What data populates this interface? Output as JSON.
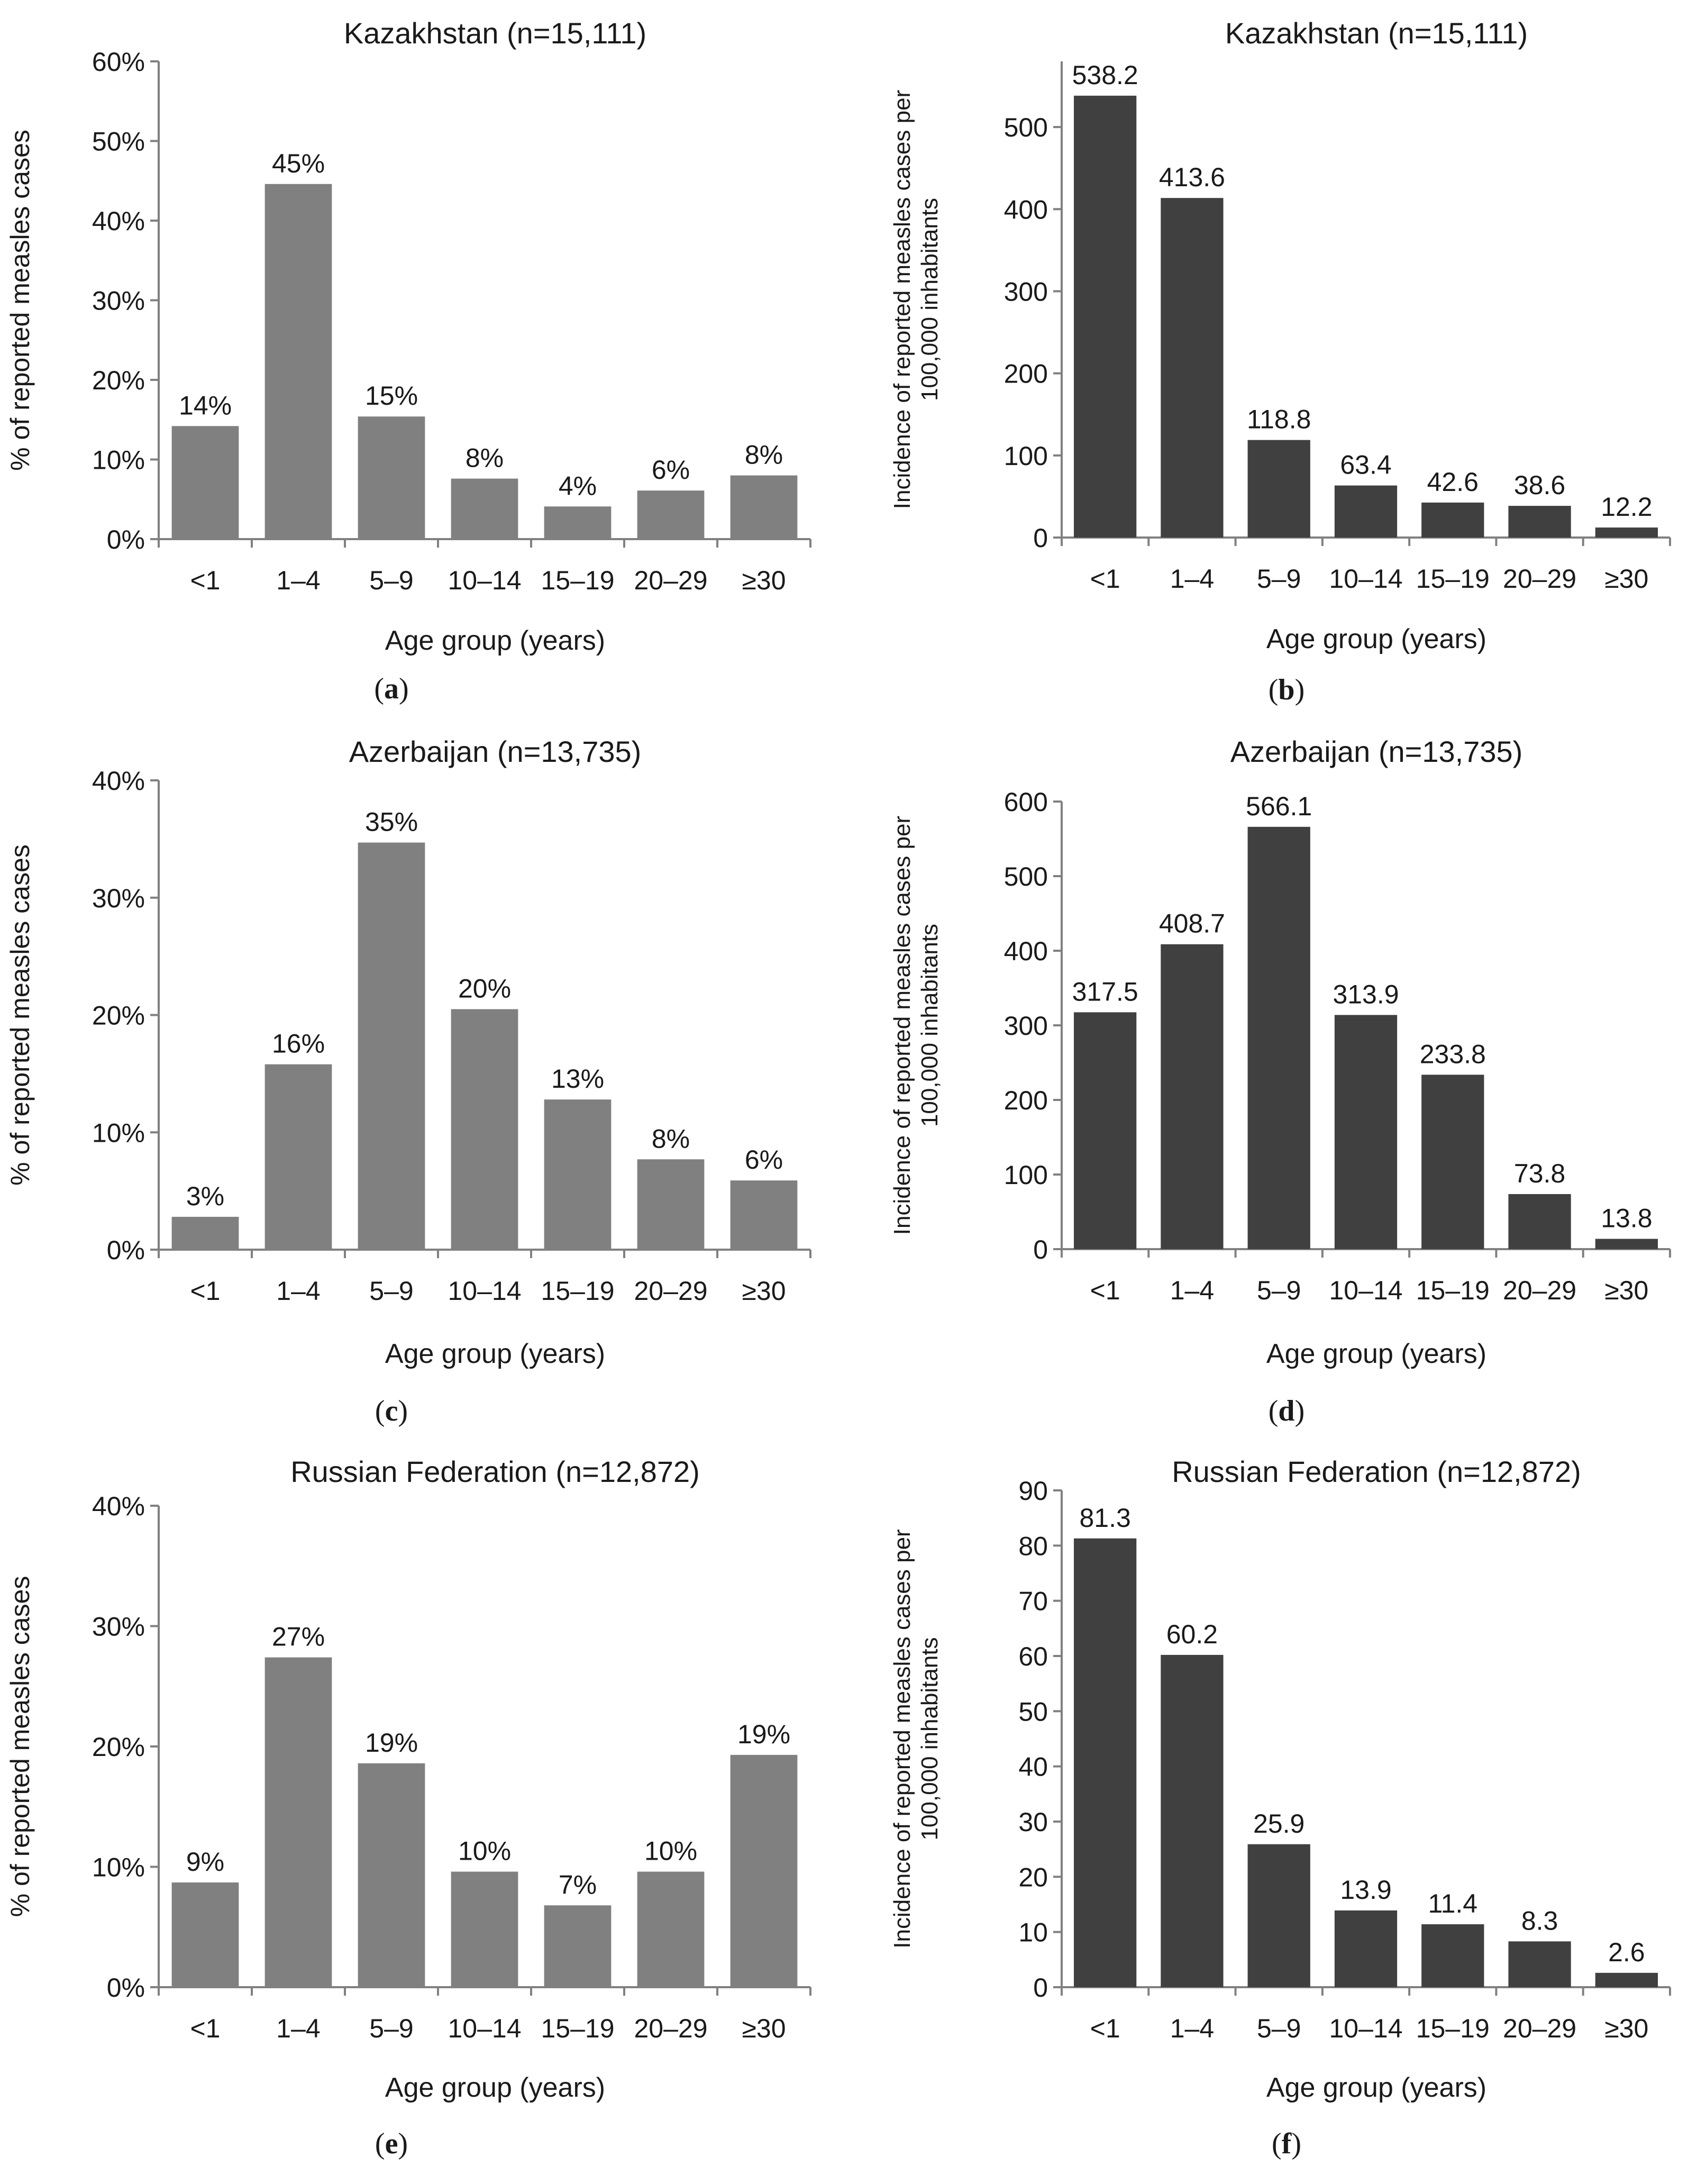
{
  "chart_data": [
    {
      "panel": "a",
      "type": "bar",
      "title": "Kazakhstan (n=15,111)",
      "xlabel": "Age group (years)",
      "ylabel": "% of reported measles cases",
      "categories": [
        "<1",
        "1–4",
        "5–9",
        "10–14",
        "15–19",
        "20–29",
        "≥30"
      ],
      "values": [
        14.2,
        44.6,
        15.4,
        7.6,
        4.1,
        6.1,
        8.0
      ],
      "data_labels": [
        "14%",
        "45%",
        "15%",
        "8%",
        "4%",
        "6%",
        "8%"
      ],
      "ylim": [
        0,
        60
      ],
      "yticks": [
        0,
        10,
        20,
        30,
        40,
        50,
        60
      ],
      "ytick_labels": [
        "0%",
        "10%",
        "20%",
        "30%",
        "40%",
        "50%",
        "60%"
      ],
      "color": "#808080"
    },
    {
      "panel": "b",
      "type": "bar",
      "title": "Kazakhstan (n=15,111)",
      "xlabel": "Age group (years)",
      "ylabel": "Incidence of reported measles cases per 100,000 inhabitants",
      "categories": [
        "<1",
        "1–4",
        "5–9",
        "10–14",
        "15–19",
        "20–29",
        "≥30"
      ],
      "values": [
        538.2,
        413.6,
        118.8,
        63.4,
        42.6,
        38.6,
        12.2
      ],
      "data_labels": [
        "538.2",
        "413.6",
        "118.8",
        "63.4",
        "42.6",
        "38.6",
        "12.2"
      ],
      "ylim": [
        0,
        580
      ],
      "yticks": [
        0,
        100,
        200,
        300,
        400,
        500
      ],
      "ytick_labels": [
        "0",
        "100",
        "200",
        "300",
        "400",
        "500"
      ],
      "color": "#404040"
    },
    {
      "panel": "c",
      "type": "bar",
      "title": "Azerbaijan (n=13,735)",
      "xlabel": "Age group (years)",
      "ylabel": "% of reported measles cases",
      "categories": [
        "<1",
        "1–4",
        "5–9",
        "10–14",
        "15–19",
        "20–29",
        "≥30"
      ],
      "values": [
        2.8,
        15.8,
        34.7,
        20.5,
        12.8,
        7.7,
        5.9
      ],
      "data_labels": [
        "3%",
        "16%",
        "35%",
        "20%",
        "13%",
        "8%",
        "6%"
      ],
      "ylim": [
        0,
        40
      ],
      "yticks": [
        0,
        10,
        20,
        30,
        40
      ],
      "ytick_labels": [
        "0%",
        "10%",
        "20%",
        "30%",
        "40%"
      ],
      "color": "#808080"
    },
    {
      "panel": "d",
      "type": "bar",
      "title": "Azerbaijan (n=13,735)",
      "xlabel": "Age group (years)",
      "ylabel": "Incidence of reported measles cases per 100,000 inhabitants",
      "categories": [
        "<1",
        "1–4",
        "5–9",
        "10–14",
        "15–19",
        "20–29",
        "≥30"
      ],
      "values": [
        317.5,
        408.7,
        566.1,
        313.9,
        233.8,
        73.8,
        13.8
      ],
      "data_labels": [
        "317.5",
        "408.7",
        "566.1",
        "313.9",
        "233.8",
        "73.8",
        "13.8"
      ],
      "ylim": [
        0,
        600
      ],
      "yticks": [
        0,
        100,
        200,
        300,
        400,
        500,
        600
      ],
      "ytick_labels": [
        "0",
        "100",
        "200",
        "300",
        "400",
        "500",
        "600"
      ],
      "color": "#404040"
    },
    {
      "panel": "e",
      "type": "bar",
      "title": "Russian Federation (n=12,872)",
      "xlabel": "Age group (years)",
      "ylabel": "% of reported measles cases",
      "categories": [
        "<1",
        "1–4",
        "5–9",
        "10–14",
        "15–19",
        "20–29",
        "≥30"
      ],
      "values": [
        8.7,
        27.4,
        18.6,
        9.6,
        6.8,
        9.6,
        19.3
      ],
      "data_labels": [
        "9%",
        "27%",
        "19%",
        "10%",
        "7%",
        "10%",
        "19%"
      ],
      "ylim": [
        0,
        40
      ],
      "yticks": [
        0,
        10,
        20,
        30,
        40
      ],
      "ytick_labels": [
        "0%",
        "10%",
        "20%",
        "30%",
        "40%"
      ],
      "color": "#808080"
    },
    {
      "panel": "f",
      "type": "bar",
      "title": "Russian Federation (n=12,872)",
      "xlabel": "Age group (years)",
      "ylabel": "Incidence of reported measles cases per 100,000 inhabitants",
      "categories": [
        "<1",
        "1–4",
        "5–9",
        "10–14",
        "15–19",
        "20–29",
        "≥30"
      ],
      "values": [
        81.3,
        60.2,
        25.9,
        13.9,
        11.4,
        8.3,
        2.6
      ],
      "data_labels": [
        "81.3",
        "60.2",
        "25.9",
        "13.9",
        "11.4",
        "8.3",
        "2.6"
      ],
      "ylim": [
        0,
        90
      ],
      "yticks": [
        0,
        10,
        20,
        30,
        40,
        50,
        60,
        70,
        80,
        90
      ],
      "ytick_labels": [
        "0",
        "10",
        "20",
        "30",
        "40",
        "50",
        "60",
        "70",
        "80",
        "90"
      ],
      "color": "#404040"
    }
  ],
  "panel_labels": [
    "(a)",
    "(b)",
    "(c)",
    "(d)",
    "(e)",
    "(f)"
  ],
  "ylabel_incidence_lines": [
    "Incidence of reported measles cases per",
    "100,000 inhabitants"
  ]
}
